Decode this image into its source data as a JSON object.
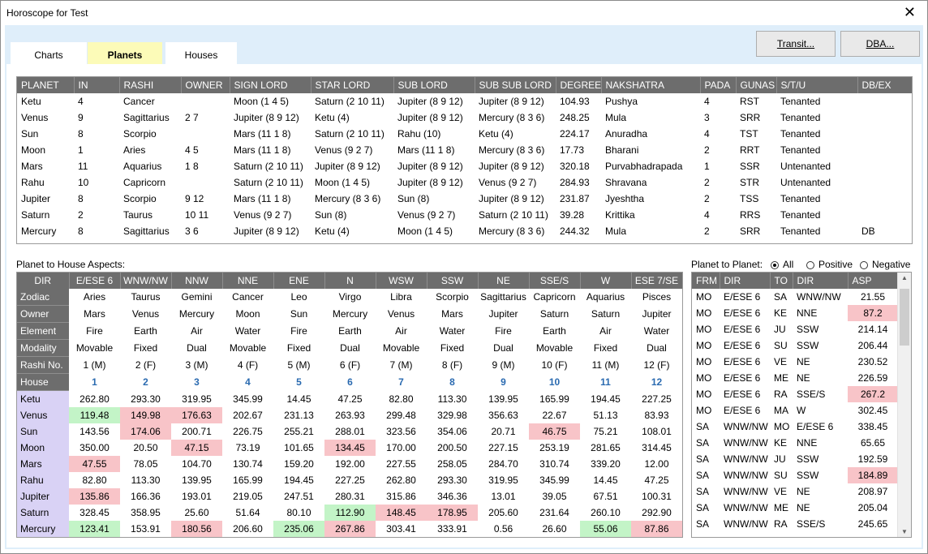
{
  "window": {
    "title": "Horoscope for Test",
    "close_glyph": "✕"
  },
  "tabs": [
    {
      "label": "Charts"
    },
    {
      "label": "Planets"
    },
    {
      "label": "Houses"
    }
  ],
  "buttons": {
    "transit": "Transit...",
    "dba": "DBA..."
  },
  "planets_table": {
    "columns": [
      "PLANET",
      "IN",
      "RASHI",
      "OWNER",
      "SIGN LORD",
      "STAR LORD",
      "SUB LORD",
      "SUB SUB LORD",
      "DEGREE",
      "NAKSHATRA",
      "PADA",
      "GUNAS",
      "S/T/U",
      "DB/EX"
    ],
    "rows": [
      [
        "Ketu",
        "4",
        "Cancer",
        "",
        "Moon (1 4 5)",
        "Saturn (2 10 11)",
        "Jupiter (8 9 12)",
        "Jupiter (8 9 12)",
        "104.93",
        "Pushya",
        "4",
        "RST",
        "Tenanted",
        ""
      ],
      [
        "Venus",
        "9",
        "Sagittarius",
        "2 7",
        "Jupiter (8 9 12)",
        "Ketu (4)",
        "Jupiter (8 9 12)",
        "Mercury (8 3 6)",
        "248.25",
        "Mula",
        "3",
        "SRR",
        "Tenanted",
        ""
      ],
      [
        "Sun",
        "8",
        "Scorpio",
        "",
        "Mars (11 1 8)",
        "Saturn (2 10 11)",
        "Rahu (10)",
        "Ketu (4)",
        "224.17",
        "Anuradha",
        "4",
        "TST",
        "Tenanted",
        ""
      ],
      [
        "Moon",
        "1",
        "Aries",
        "4 5",
        "Mars (11 1 8)",
        "Venus (9 2 7)",
        "Mars (11 1 8)",
        "Mercury (8 3 6)",
        "17.73",
        "Bharani",
        "2",
        "RRT",
        "Tenanted",
        ""
      ],
      [
        "Mars",
        "11",
        "Aquarius",
        "1 8",
        "Saturn (2 10 11)",
        "Jupiter (8 9 12)",
        "Jupiter (8 9 12)",
        "Jupiter (8 9 12)",
        "320.18",
        "Purvabhadrapada",
        "1",
        "SSR",
        "Untenanted",
        ""
      ],
      [
        "Rahu",
        "10",
        "Capricorn",
        "",
        "Saturn (2 10 11)",
        "Moon (1 4 5)",
        "Jupiter (8 9 12)",
        "Venus (9 2 7)",
        "284.93",
        "Shravana",
        "2",
        "STR",
        "Untenanted",
        ""
      ],
      [
        "Jupiter",
        "8",
        "Scorpio",
        "9 12",
        "Mars (11 1 8)",
        "Mercury (8 3 6)",
        "Sun (8)",
        "Jupiter (8 9 12)",
        "231.87",
        "Jyeshtha",
        "2",
        "TSS",
        "Tenanted",
        ""
      ],
      [
        "Saturn",
        "2",
        "Taurus",
        "10 11",
        "Venus (9 2 7)",
        "Sun (8)",
        "Venus (9 2 7)",
        "Saturn (2 10 11)",
        "39.28",
        "Krittika",
        "4",
        "RRS",
        "Tenanted",
        ""
      ],
      [
        "Mercury",
        "8",
        "Sagittarius",
        "3 6",
        "Jupiter (8 9 12)",
        "Ketu (4)",
        "Moon (1 4 5)",
        "Mercury (8 3 6)",
        "244.32",
        "Mula",
        "2",
        "SRR",
        "Tenanted",
        "DB"
      ]
    ]
  },
  "aspects": {
    "label": "Planet to House Aspects:",
    "header": [
      "DIR",
      "E/ESE 6",
      "WNW/NW",
      "NNW",
      "NNE",
      "ENE",
      "N",
      "WSW",
      "SSW",
      "NE",
      "SSE/S",
      "W",
      "ESE 7/SE"
    ],
    "info_rows": [
      {
        "label": "Zodiac",
        "values": [
          "Aries",
          "Taurus",
          "Gemini",
          "Cancer",
          "Leo",
          "Virgo",
          "Libra",
          "Scorpio",
          "Sagittarius",
          "Capricorn",
          "Aquarius",
          "Pisces"
        ]
      },
      {
        "label": "Owner",
        "values": [
          "Mars",
          "Venus",
          "Mercury",
          "Moon",
          "Sun",
          "Mercury",
          "Venus",
          "Mars",
          "Jupiter",
          "Saturn",
          "Saturn",
          "Jupiter"
        ]
      },
      {
        "label": "Element",
        "values": [
          "Fire",
          "Earth",
          "Air",
          "Water",
          "Fire",
          "Earth",
          "Air",
          "Water",
          "Fire",
          "Earth",
          "Air",
          "Water"
        ]
      },
      {
        "label": "Modality",
        "values": [
          "Movable",
          "Fixed",
          "Dual",
          "Movable",
          "Fixed",
          "Dual",
          "Movable",
          "Fixed",
          "Dual",
          "Movable",
          "Fixed",
          "Dual"
        ]
      },
      {
        "label": "Rashi No.",
        "values": [
          "1 (M)",
          "2 (F)",
          "3 (M)",
          "4 (F)",
          "5 (M)",
          "6 (F)",
          "7 (M)",
          "8 (F)",
          "9 (M)",
          "10 (F)",
          "11 (M)",
          "12 (F)"
        ]
      }
    ],
    "house_row": {
      "label": "House",
      "values": [
        "1",
        "2",
        "3",
        "4",
        "5",
        "6",
        "7",
        "8",
        "9",
        "10",
        "11",
        "12"
      ]
    },
    "planet_rows": [
      {
        "label": "Ketu",
        "values": [
          "262.80",
          "293.30",
          "319.95",
          "345.99",
          "14.45",
          "47.25",
          "82.80",
          "113.30",
          "139.95",
          "165.99",
          "194.45",
          "227.25"
        ],
        "flags": [
          "",
          "",
          "",
          "",
          "",
          "",
          "",
          "",
          "",
          "",
          "",
          ""
        ]
      },
      {
        "label": "Venus",
        "values": [
          "119.48",
          "149.98",
          "176.63",
          "202.67",
          "231.13",
          "263.93",
          "299.48",
          "329.98",
          "356.63",
          "22.67",
          "51.13",
          "83.93"
        ],
        "flags": [
          "pos",
          "neg",
          "neg",
          "",
          "",
          "",
          "",
          "",
          "",
          "",
          "",
          ""
        ]
      },
      {
        "label": "Sun",
        "values": [
          "143.56",
          "174.06",
          "200.71",
          "226.75",
          "255.21",
          "288.01",
          "323.56",
          "354.06",
          "20.71",
          "46.75",
          "75.21",
          "108.01"
        ],
        "flags": [
          "",
          "neg",
          "",
          "",
          "",
          "",
          "",
          "",
          "",
          "neg",
          "",
          ""
        ]
      },
      {
        "label": "Moon",
        "values": [
          "350.00",
          "20.50",
          "47.15",
          "73.19",
          "101.65",
          "134.45",
          "170.00",
          "200.50",
          "227.15",
          "253.19",
          "281.65",
          "314.45"
        ],
        "flags": [
          "",
          "",
          "neg",
          "",
          "",
          "neg",
          "",
          "",
          "",
          "",
          "",
          ""
        ]
      },
      {
        "label": "Mars",
        "values": [
          "47.55",
          "78.05",
          "104.70",
          "130.74",
          "159.20",
          "192.00",
          "227.55",
          "258.05",
          "284.70",
          "310.74",
          "339.20",
          "12.00"
        ],
        "flags": [
          "neg",
          "",
          "",
          "",
          "",
          "",
          "",
          "",
          "",
          "",
          "",
          ""
        ]
      },
      {
        "label": "Rahu",
        "values": [
          "82.80",
          "113.30",
          "139.95",
          "165.99",
          "194.45",
          "227.25",
          "262.80",
          "293.30",
          "319.95",
          "345.99",
          "14.45",
          "47.25"
        ],
        "flags": [
          "",
          "",
          "",
          "",
          "",
          "",
          "",
          "",
          "",
          "",
          "",
          ""
        ]
      },
      {
        "label": "Jupiter",
        "values": [
          "135.86",
          "166.36",
          "193.01",
          "219.05",
          "247.51",
          "280.31",
          "315.86",
          "346.36",
          "13.01",
          "39.05",
          "67.51",
          "100.31"
        ],
        "flags": [
          "neg",
          "",
          "",
          "",
          "",
          "",
          "",
          "",
          "",
          "",
          "",
          ""
        ]
      },
      {
        "label": "Saturn",
        "values": [
          "328.45",
          "358.95",
          "25.60",
          "51.64",
          "80.10",
          "112.90",
          "148.45",
          "178.95",
          "205.60",
          "231.64",
          "260.10",
          "292.90"
        ],
        "flags": [
          "",
          "",
          "",
          "",
          "",
          "pos",
          "neg",
          "neg",
          "",
          "",
          "",
          ""
        ]
      },
      {
        "label": "Mercury",
        "values": [
          "123.41",
          "153.91",
          "180.56",
          "206.60",
          "235.06",
          "267.86",
          "303.41",
          "333.91",
          "0.56",
          "26.60",
          "55.06",
          "87.86"
        ],
        "flags": [
          "pos",
          "",
          "neg",
          "",
          "pos",
          "neg",
          "",
          "",
          "",
          "",
          "pos",
          "neg"
        ]
      }
    ]
  },
  "p2p": {
    "label": "Planet to Planet:",
    "options": [
      {
        "label": "All",
        "selected": true
      },
      {
        "label": "Positive",
        "selected": false
      },
      {
        "label": "Negative",
        "selected": false
      }
    ],
    "columns": [
      "FRM",
      "DIR",
      "TO",
      "DIR",
      "ASP"
    ],
    "rows": [
      {
        "cells": [
          "MO",
          "E/ESE 6",
          "SA",
          "WNW/NW",
          "21.55"
        ],
        "flag": ""
      },
      {
        "cells": [
          "MO",
          "E/ESE 6",
          "KE",
          "NNE",
          "87.2"
        ],
        "flag": "neg"
      },
      {
        "cells": [
          "MO",
          "E/ESE 6",
          "JU",
          "SSW",
          "214.14"
        ],
        "flag": ""
      },
      {
        "cells": [
          "MO",
          "E/ESE 6",
          "SU",
          "SSW",
          "206.44"
        ],
        "flag": ""
      },
      {
        "cells": [
          "MO",
          "E/ESE 6",
          "VE",
          "NE",
          "230.52"
        ],
        "flag": ""
      },
      {
        "cells": [
          "MO",
          "E/ESE 6",
          "ME",
          "NE",
          "226.59"
        ],
        "flag": ""
      },
      {
        "cells": [
          "MO",
          "E/ESE 6",
          "RA",
          "SSE/S",
          "267.2"
        ],
        "flag": "neg"
      },
      {
        "cells": [
          "MO",
          "E/ESE 6",
          "MA",
          "W",
          "302.45"
        ],
        "flag": ""
      },
      {
        "cells": [
          "SA",
          "WNW/NW",
          "MO",
          "E/ESE 6",
          "338.45"
        ],
        "flag": ""
      },
      {
        "cells": [
          "SA",
          "WNW/NW",
          "KE",
          "NNE",
          "65.65"
        ],
        "flag": ""
      },
      {
        "cells": [
          "SA",
          "WNW/NW",
          "JU",
          "SSW",
          "192.59"
        ],
        "flag": ""
      },
      {
        "cells": [
          "SA",
          "WNW/NW",
          "SU",
          "SSW",
          "184.89"
        ],
        "flag": "neg"
      },
      {
        "cells": [
          "SA",
          "WNW/NW",
          "VE",
          "NE",
          "208.97"
        ],
        "flag": ""
      },
      {
        "cells": [
          "SA",
          "WNW/NW",
          "ME",
          "NE",
          "205.04"
        ],
        "flag": ""
      },
      {
        "cells": [
          "SA",
          "WNW/NW",
          "RA",
          "SSE/S",
          "245.65"
        ],
        "flag": ""
      }
    ]
  },
  "colors": {
    "header_bg": "#6d6d6d",
    "positive": "#c3f4c7",
    "negative": "#f8c4c8",
    "planet_label_bg": "#d9d2f5",
    "active_tab": "#fcfbb8",
    "client_bg": "#dfeefa",
    "house_number": "#2a6ab0"
  }
}
